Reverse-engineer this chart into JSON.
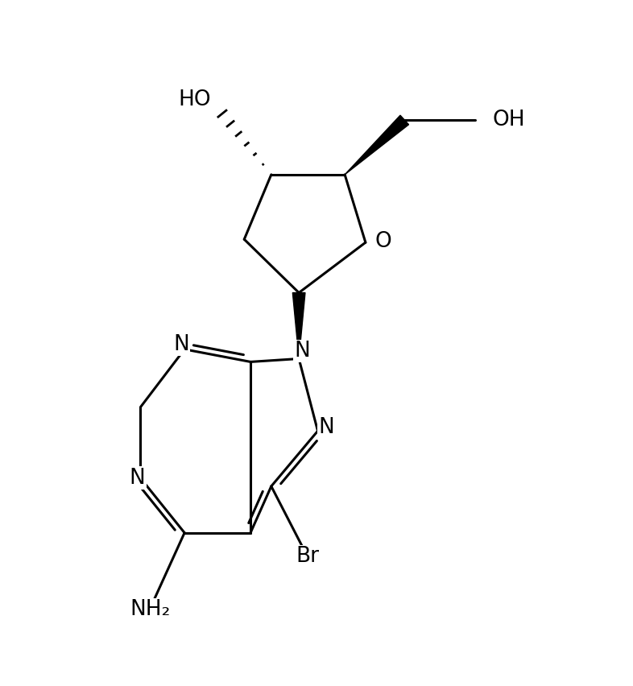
{
  "background": "#ffffff",
  "line_color": "#000000",
  "line_width": 2.2,
  "font_size": 19,
  "fig_width": 7.86,
  "fig_height": 8.52,
  "xlim": [
    0,
    10
  ],
  "ylim": [
    0,
    10.8
  ],
  "labels": {
    "N7": "N",
    "N5": "N",
    "N1": "N",
    "N2": "N",
    "O_ring": "O",
    "OH5": "OH",
    "HO3": "HO",
    "NH2": "NH₂",
    "Br": "Br"
  }
}
